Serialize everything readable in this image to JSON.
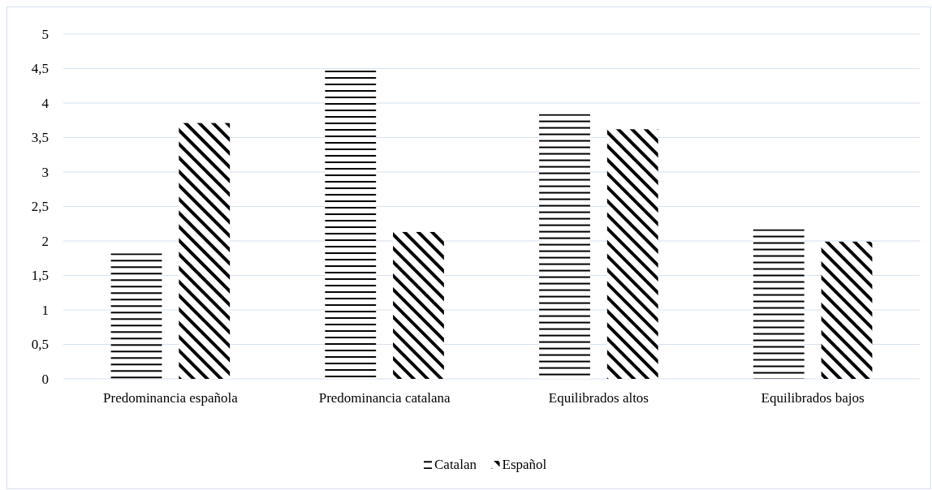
{
  "chart_data": {
    "type": "bar",
    "categories": [
      "Predominancia española",
      "Predominancia catalana",
      "Equilibrados altos",
      "Equilibrados bajos"
    ],
    "series": [
      {
        "name": "Catalan",
        "color": "#000000",
        "values": [
          1.82,
          4.47,
          3.84,
          2.17
        ]
      },
      {
        "name": "Español",
        "color": "#000000",
        "values": [
          3.71,
          2.13,
          3.62,
          1.99
        ]
      }
    ],
    "ylim": [
      0,
      5
    ],
    "yticks": [
      0,
      {
        "value": 0.5,
        "label": "0,5"
      },
      1,
      {
        "value": 1.5,
        "label": "1,5"
      },
      2,
      {
        "value": 2.5,
        "label": "2,5"
      },
      3,
      {
        "value": 3.5,
        "label": "3,5"
      },
      4,
      {
        "value": 4.5,
        "label": "4,5"
      },
      5
    ],
    "grid": "y",
    "legend": "bottom"
  }
}
